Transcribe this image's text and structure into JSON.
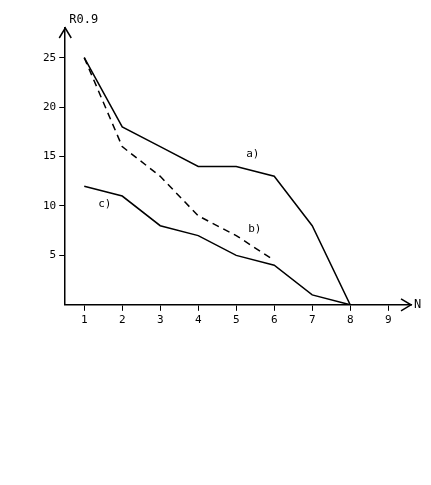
{
  "chart_data": {
    "type": "line",
    "x_label": "N",
    "y_label": "R0.9",
    "x": [
      1,
      2,
      3,
      4,
      5,
      6,
      7,
      8
    ],
    "series": [
      {
        "name": "a)",
        "color": "#000000",
        "line_style": "solid",
        "values": [
          25,
          18,
          16,
          14,
          14,
          13,
          8,
          0
        ]
      },
      {
        "name": "b)",
        "color": "#000000",
        "line_style": "dashed",
        "values": [
          25,
          16,
          13,
          9,
          7,
          4.5,
          null,
          null
        ]
      },
      {
        "name": "c)",
        "color": "#000000",
        "line_style": "solid",
        "values": [
          12,
          11,
          8,
          7,
          5,
          4,
          1,
          0
        ]
      }
    ],
    "xlim": [
      0.5,
      9.6
    ],
    "xticks": [
      1,
      2,
      3,
      4,
      5,
      6,
      7,
      8,
      9
    ],
    "ylim": [
      0,
      28
    ],
    "yticks": [
      5,
      10,
      15,
      20,
      25
    ],
    "grid": false
  }
}
